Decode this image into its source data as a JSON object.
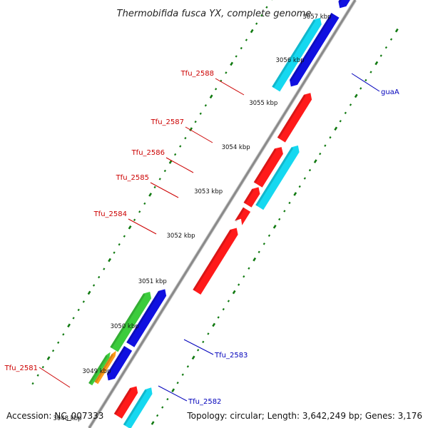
{
  "title": "Thermobifida fusca YX, complete genome",
  "footer": {
    "accession": "Accession: NC_007333",
    "summary": "Topology: circular; Length: 3,642,249 bp; Genes: 3,176"
  },
  "colors": {
    "backbone": "#8a8a8a",
    "tick_dot": "#117a11",
    "label_red": "#cc0000",
    "label_blue": "#0000bb",
    "red": "#ff1a1a",
    "blue": "#1010e0",
    "cyan": "#15d8f0",
    "green": "#3ccc3c",
    "orange": "#ff9a1a"
  },
  "scale_ticks": [
    "3048 kbp",
    "3049 kbp",
    "3050 kbp",
    "3051 kbp",
    "3052 kbp",
    "3053 kbp",
    "3054 kbp",
    "3055 kbp",
    "3056 kbp",
    "3057 kbp"
  ],
  "gene_labels": [
    {
      "text": "Tfu_2588",
      "color": "red"
    },
    {
      "text": "Tfu_2587",
      "color": "red"
    },
    {
      "text": "Tfu_2586",
      "color": "red"
    },
    {
      "text": "Tfu_2585",
      "color": "red"
    },
    {
      "text": "Tfu_2584",
      "color": "red"
    },
    {
      "text": "Tfu_2581",
      "color": "red"
    },
    {
      "text": "guaA",
      "color": "blue"
    },
    {
      "text": "Tfu_2583",
      "color": "blue"
    },
    {
      "text": "Tfu_2582",
      "color": "blue"
    }
  ]
}
